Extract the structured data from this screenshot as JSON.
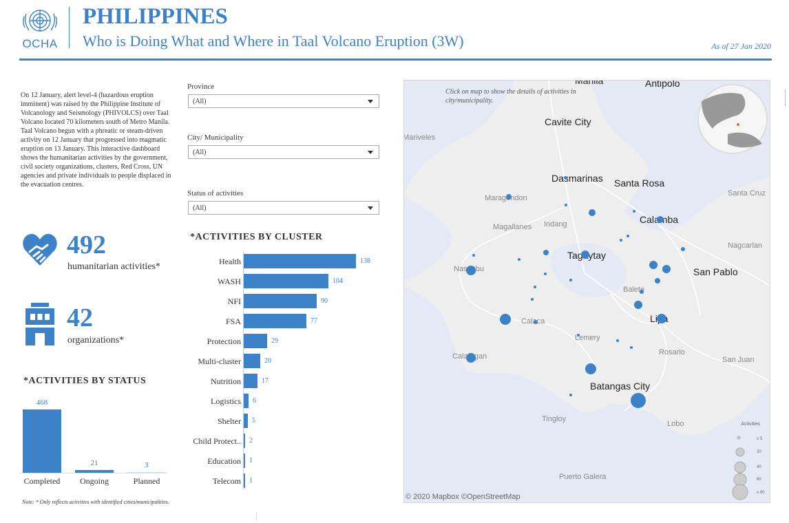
{
  "header": {
    "org": "OCHA",
    "title": "PHILIPPINES",
    "subtitle": "Who is Doing What and Where in Taal Volcano Eruption (3W)",
    "as_of": "As of 27 Jan 2020"
  },
  "intro": "On 12 January, alert level-4 (hazardous eruption imminent) was raised by the Philippine Institute of Volcanology and Seismology (PHIVOLCS) over Taal Volcano located 70 kilometers south of Metro Manila. Taal Volcano begun with a phreatic or steam-driven activity on 12 January that progressed into magmatic eruption on 13 January. This interactive dashboard shows the humanitarian activities by the government,  civil society organizations, clusters, Red Cross,  UN agencies and private individuals  to people displaced in the evacuation centres.",
  "filters": {
    "province": {
      "label": "Province",
      "value": "(All)"
    },
    "city": {
      "label": "City/ Municipality",
      "value": "(All)"
    },
    "status": {
      "label": "Status of activities",
      "value": "(All)"
    }
  },
  "kpis": {
    "activities": {
      "value": "492",
      "label": "humanitarian activities*"
    },
    "organizations": {
      "value": "42",
      "label": "organizations*"
    }
  },
  "status_chart": {
    "title": "*ACTIVITIES BY STATUS",
    "items": [
      {
        "label": "Completed",
        "value": 468
      },
      {
        "label": "Ongoing",
        "value": 21
      },
      {
        "label": "Planned",
        "value": 3
      }
    ]
  },
  "chart_data": {
    "type": "bar",
    "title": "*ACTIVITIES BY CLUSTER",
    "orientation": "horizontal",
    "categories": [
      "Health",
      "WASH",
      "NFI",
      "FSA",
      "Protection",
      "Multi-cluster",
      "Nutrition",
      "Logistics",
      "Shelter",
      "Child Protect..",
      "Education",
      "Telecom"
    ],
    "values": [
      138,
      104,
      90,
      77,
      29,
      20,
      17,
      6,
      5,
      2,
      1,
      1
    ],
    "color": "#3b82c8"
  },
  "note": "Note: * Only reflects activities with identified cities/municipalities.",
  "map": {
    "hint": "Click on map to show the details of activities in city/municipality.",
    "attribution": "© 2020 Mapbox  ©OpenStreetMap",
    "legend_title": "Activities",
    "legend_items": [
      "≤ 5",
      "20",
      "40",
      "60",
      "≥ 80"
    ],
    "places_major": [
      "Manila",
      "Antipolo",
      "Cavite City",
      "Dasmarinas",
      "Santa Rosa",
      "Calamba",
      "Tagaytay",
      "San Pablo",
      "Lipa",
      "Batangas City"
    ],
    "places_minor": [
      "Mariveles",
      "Maragondon",
      "Magallanes",
      "Indang",
      "Santa Cruz",
      "Nagcarlan",
      "Nasugbu",
      "Balete",
      "Calaca",
      "Lemery",
      "Rosario",
      "San Juan",
      "Calatagan",
      "Tingloy",
      "Lobo",
      "Puerto Galera"
    ]
  },
  "colors": {
    "accent": "#3b82c8",
    "water": "#e4e9f5",
    "land": "#eeeeee"
  }
}
